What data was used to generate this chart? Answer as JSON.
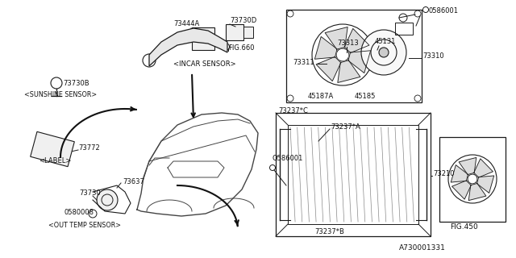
{
  "bg_color": "#ffffff",
  "lc": "#1a1a1a",
  "diagram_id": "A730001331",
  "figsize": [
    6.4,
    3.2
  ],
  "dpi": 100,
  "xlim": [
    0,
    640
  ],
  "ylim": [
    0,
    320
  ]
}
